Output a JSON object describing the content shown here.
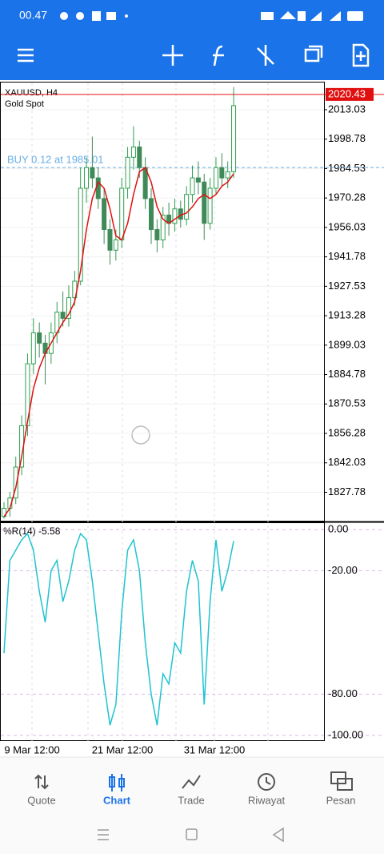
{
  "status_bar": {
    "time": "00.47"
  },
  "chart": {
    "type": "candlestick",
    "symbol": "XAUUSD, H4",
    "description": "Gold Spot",
    "order_label": "BUY 0.12 at 1985.01",
    "order_price": 1985.01,
    "last_price": 2020.43,
    "ylim": [
      1814,
      2026.2
    ],
    "yticks": [
      2013.03,
      1998.78,
      1984.53,
      1970.28,
      1956.03,
      1941.78,
      1927.53,
      1913.28,
      1899.03,
      1884.78,
      1870.53,
      1856.28,
      1842.03,
      1827.78
    ],
    "up_color": "#2f9e50",
    "down_color": "#3f8a58",
    "ma_color": "#e01010",
    "candles": [
      [
        1816,
        1823,
        1815,
        1820
      ],
      [
        1820,
        1828,
        1816,
        1825
      ],
      [
        1825,
        1845,
        1822,
        1840
      ],
      [
        1840,
        1865,
        1836,
        1860
      ],
      [
        1860,
        1895,
        1855,
        1890
      ],
      [
        1890,
        1912,
        1885,
        1905
      ],
      [
        1905,
        1910,
        1893,
        1900
      ],
      [
        1900,
        1904,
        1880,
        1895
      ],
      [
        1895,
        1910,
        1890,
        1905
      ],
      [
        1905,
        1920,
        1900,
        1915
      ],
      [
        1915,
        1925,
        1908,
        1912
      ],
      [
        1912,
        1928,
        1908,
        1922
      ],
      [
        1922,
        1935,
        1918,
        1930
      ],
      [
        1930,
        1985,
        1928,
        1975
      ],
      [
        1975,
        1990,
        1968,
        1985
      ],
      [
        1985,
        2000,
        1975,
        1980
      ],
      [
        1980,
        1985,
        1965,
        1970
      ],
      [
        1970,
        1975,
        1948,
        1955
      ],
      [
        1955,
        1960,
        1938,
        1945
      ],
      [
        1945,
        1955,
        1940,
        1950
      ],
      [
        1950,
        1980,
        1946,
        1975
      ],
      [
        1975,
        1995,
        1970,
        1990
      ],
      [
        1990,
        2005,
        1984,
        1995
      ],
      [
        1995,
        1998,
        1980,
        1985
      ],
      [
        1985,
        1990,
        1965,
        1970
      ],
      [
        1970,
        1975,
        1948,
        1955
      ],
      [
        1955,
        1960,
        1944,
        1950
      ],
      [
        1950,
        1966,
        1946,
        1962
      ],
      [
        1962,
        1968,
        1952,
        1958
      ],
      [
        1958,
        1970,
        1954,
        1965
      ],
      [
        1965,
        1969,
        1956,
        1960
      ],
      [
        1960,
        1976,
        1957,
        1972
      ],
      [
        1972,
        1986,
        1968,
        1980
      ],
      [
        1980,
        1988,
        1972,
        1978
      ],
      [
        1978,
        1982,
        1950,
        1958
      ],
      [
        1958,
        1980,
        1955,
        1975
      ],
      [
        1975,
        1990,
        1972,
        1985
      ],
      [
        1985,
        1992,
        1976,
        1980
      ],
      [
        1980,
        1988,
        1975,
        1983
      ],
      [
        1983,
        2024,
        1980,
        2015
      ]
    ],
    "ma": [
      1816,
      1820,
      1830,
      1845,
      1862,
      1878,
      1888,
      1895,
      1900,
      1905,
      1910,
      1914,
      1920,
      1935,
      1955,
      1970,
      1978,
      1975,
      1965,
      1952,
      1950,
      1958,
      1972,
      1983,
      1985,
      1978,
      1966,
      1960,
      1958,
      1960,
      1962,
      1963,
      1966,
      1970,
      1972,
      1970,
      1972,
      1976,
      1978,
      1982
    ],
    "indicator": {
      "label": "%R(14) -5.58",
      "color": "#1ec3cf",
      "ylim": [
        -102.7,
        3.5
      ],
      "yticks": [
        {
          "value": 0,
          "label": "0.00"
        },
        {
          "value": -20,
          "label": "-20.00"
        },
        {
          "value": -80,
          "label": "-80.00"
        },
        {
          "value": -100,
          "label": "-100.00"
        }
      ],
      "values": [
        -60,
        -15,
        -10,
        -5,
        -2,
        -10,
        -30,
        -45,
        -20,
        -15,
        -35,
        -25,
        -10,
        -2,
        -5,
        -25,
        -50,
        -75,
        -95,
        -85,
        -40,
        -10,
        -5,
        -20,
        -55,
        -80,
        -95,
        -70,
        -75,
        -55,
        -60,
        -30,
        -15,
        -25,
        -85,
        -35,
        -5,
        -30,
        -20,
        -5.58
      ]
    },
    "x_labels": [
      "9 Mar 12:00",
      "21 Mar 12:00",
      "31 Mar 12:00"
    ]
  },
  "nav": [
    "Quote",
    "Chart",
    "Trade",
    "Riwayat",
    "Pesan"
  ]
}
